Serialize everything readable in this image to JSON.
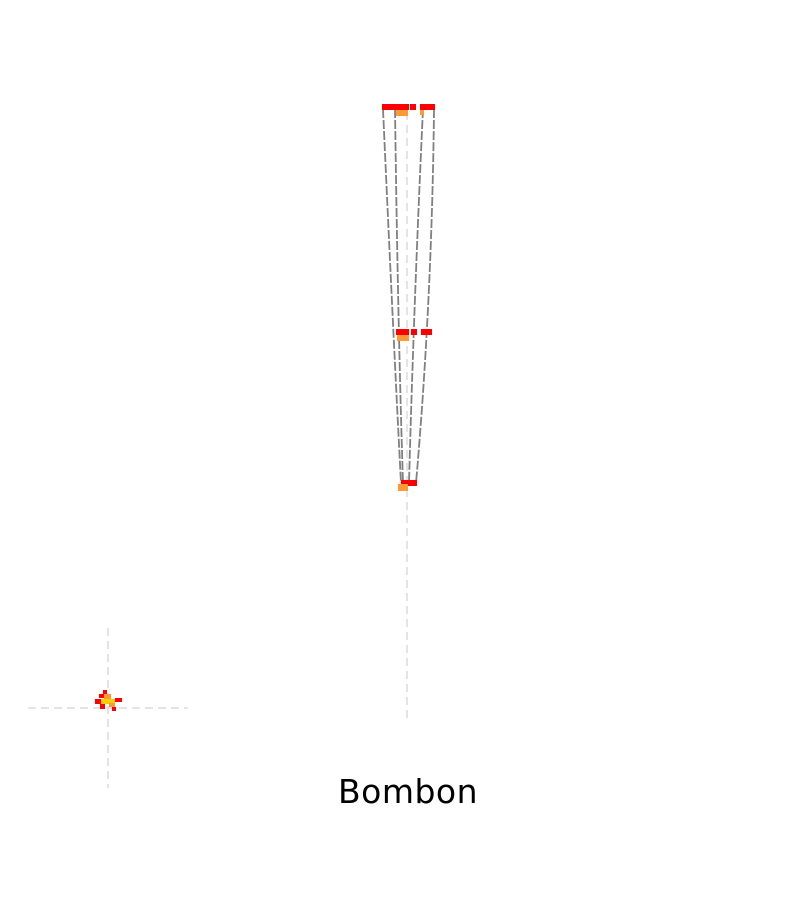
{
  "caption": "Bombon",
  "colors": {
    "bar": "#ff0000",
    "marker": "#ff9933",
    "outline": "#808080",
    "guide": "#d9d9d9"
  },
  "shape": {
    "kind": "tapered-outline",
    "levels": [
      "top",
      "middle",
      "bottom"
    ]
  }
}
